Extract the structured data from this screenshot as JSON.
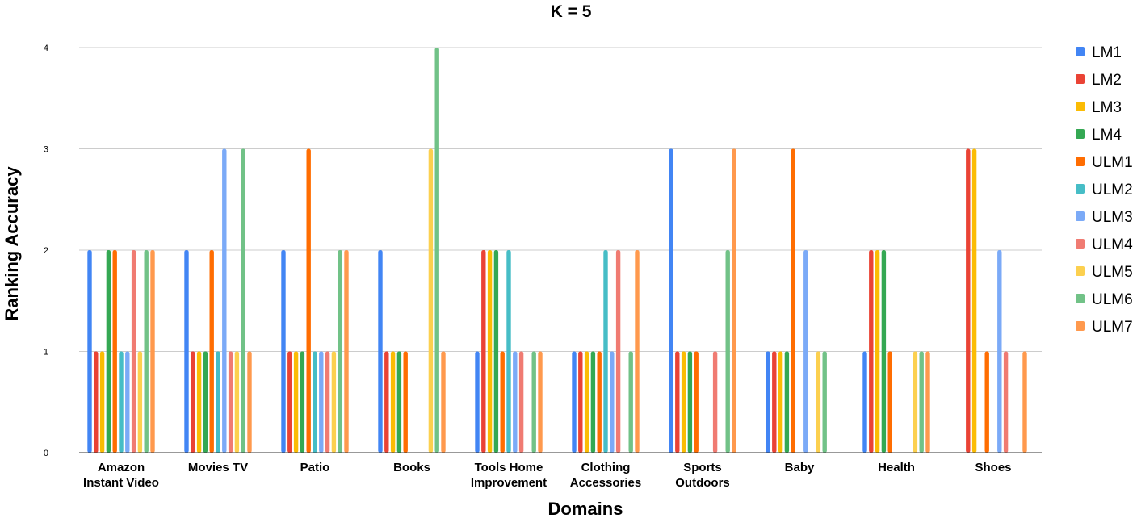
{
  "chart_data": {
    "type": "bar",
    "title": "K = 5",
    "xlabel": "Domains",
    "ylabel": "Ranking Accuracy",
    "ylim": [
      0,
      4
    ],
    "yticks": [
      0,
      1,
      2,
      3,
      4
    ],
    "grid": true,
    "legend_position": "right",
    "categories": [
      [
        "Amazon",
        "Instant Video"
      ],
      [
        "Movies TV"
      ],
      [
        "Patio"
      ],
      [
        "Books"
      ],
      [
        "Tools Home",
        "Improvement"
      ],
      [
        "Clothing",
        "Accessories"
      ],
      [
        "Sports",
        "Outdoors"
      ],
      [
        "Baby"
      ],
      [
        "Health"
      ],
      [
        "Shoes"
      ]
    ],
    "series": [
      {
        "name": "LM1",
        "color": "#4285f4",
        "values": [
          2,
          2,
          2,
          2,
          1,
          1,
          3,
          1,
          1,
          0
        ]
      },
      {
        "name": "LM2",
        "color": "#ea4335",
        "values": [
          1,
          1,
          1,
          1,
          2,
          1,
          1,
          1,
          2,
          3
        ]
      },
      {
        "name": "LM3",
        "color": "#fbbc04",
        "values": [
          1,
          1,
          1,
          1,
          2,
          1,
          1,
          1,
          2,
          3
        ]
      },
      {
        "name": "LM4",
        "color": "#34a853",
        "values": [
          2,
          1,
          1,
          1,
          2,
          1,
          1,
          1,
          2,
          0
        ]
      },
      {
        "name": "ULM1",
        "color": "#ff6d01",
        "values": [
          2,
          2,
          3,
          1,
          1,
          1,
          1,
          3,
          1,
          1
        ]
      },
      {
        "name": "ULM2",
        "color": "#46bdc6",
        "values": [
          1,
          1,
          1,
          0,
          2,
          2,
          0,
          0,
          0,
          0
        ]
      },
      {
        "name": "ULM3",
        "color": "#7baaf7",
        "values": [
          1,
          3,
          1,
          0,
          1,
          1,
          0,
          2,
          0,
          2
        ]
      },
      {
        "name": "ULM4",
        "color": "#f07b72",
        "values": [
          2,
          1,
          1,
          0,
          1,
          2,
          1,
          0,
          0,
          1
        ]
      },
      {
        "name": "ULM5",
        "color": "#fcd04f",
        "values": [
          1,
          1,
          1,
          3,
          0,
          0,
          0,
          1,
          1,
          0
        ]
      },
      {
        "name": "ULM6",
        "color": "#71c287",
        "values": [
          2,
          3,
          2,
          4,
          1,
          1,
          2,
          1,
          1,
          0
        ]
      },
      {
        "name": "ULM7",
        "color": "#ff994d",
        "values": [
          2,
          1,
          2,
          1,
          1,
          2,
          3,
          0,
          1,
          1
        ]
      }
    ]
  }
}
